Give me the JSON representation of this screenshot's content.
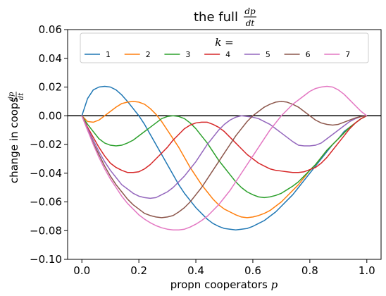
{
  "chart_data": {
    "type": "line",
    "title": {
      "prefix": "the full",
      "frac_num": "dp",
      "frac_den": "dt"
    },
    "xlabel": {
      "text": "propn cooperators",
      "var": "p"
    },
    "ylabel": {
      "text": "change in coops",
      "frac_num": "dp",
      "frac_den": "dt"
    },
    "xlim": [
      -0.05,
      1.05
    ],
    "ylim": [
      -0.1,
      0.06
    ],
    "xticks": [
      {
        "value": 0.0,
        "label": "0.0"
      },
      {
        "value": 0.2,
        "label": "0.2"
      },
      {
        "value": 0.4,
        "label": "0.4"
      },
      {
        "value": 0.6,
        "label": "0.6"
      },
      {
        "value": 0.8,
        "label": "0.8"
      },
      {
        "value": 1.0,
        "label": "1.0"
      }
    ],
    "yticks": [
      {
        "value": -0.1,
        "label": "−0.10"
      },
      {
        "value": -0.08,
        "label": "−0.08"
      },
      {
        "value": -0.06,
        "label": "−0.06"
      },
      {
        "value": -0.04,
        "label": "−0.04"
      },
      {
        "value": -0.02,
        "label": "−0.02"
      },
      {
        "value": 0.0,
        "label": "0.00"
      },
      {
        "value": 0.02,
        "label": "0.02"
      },
      {
        "value": 0.04,
        "label": "0.04"
      },
      {
        "value": 0.06,
        "label": "0.06"
      }
    ],
    "reference_line": {
      "y": 0.0,
      "color": "#000000"
    },
    "grid": false,
    "legend": {
      "title": "k =",
      "placement": "upper-center",
      "columns": 7
    },
    "series": [
      {
        "name": "1",
        "color": "#1f77b4",
        "x": [
          0.0,
          0.02,
          0.04,
          0.06,
          0.08,
          0.1,
          0.12,
          0.14,
          0.16,
          0.18,
          0.2,
          0.22,
          0.24,
          0.26,
          0.28,
          0.3,
          0.32,
          0.34,
          0.36,
          0.38,
          0.4,
          0.42,
          0.44,
          0.46,
          0.48,
          0.5,
          0.52,
          0.54,
          0.56,
          0.58,
          0.6,
          0.62,
          0.64,
          0.66,
          0.68,
          0.7,
          0.72,
          0.74,
          0.76,
          0.78,
          0.8,
          0.82,
          0.84,
          0.86,
          0.88,
          0.9,
          0.92,
          0.94,
          0.96,
          0.98,
          1.0
        ],
        "y": [
          0.0,
          0.012,
          0.018,
          0.02,
          0.0205,
          0.02,
          0.018,
          0.0145,
          0.01,
          0.005,
          0.0,
          -0.006,
          -0.013,
          -0.02,
          -0.027,
          -0.034,
          -0.041,
          -0.048,
          -0.054,
          -0.059,
          -0.064,
          -0.068,
          -0.072,
          -0.075,
          -0.077,
          -0.0785,
          -0.079,
          -0.0795,
          -0.079,
          -0.0785,
          -0.077,
          -0.075,
          -0.073,
          -0.07,
          -0.067,
          -0.063,
          -0.059,
          -0.055,
          -0.05,
          -0.045,
          -0.04,
          -0.035,
          -0.03,
          -0.025,
          -0.02,
          -0.016,
          -0.011,
          -0.008,
          -0.005,
          -0.002,
          0.0
        ]
      },
      {
        "name": "2",
        "color": "#ff7f0e",
        "x": [
          0.0,
          0.02,
          0.04,
          0.06,
          0.08,
          0.1,
          0.12,
          0.14,
          0.16,
          0.18,
          0.2,
          0.22,
          0.24,
          0.26,
          0.28,
          0.3,
          0.32,
          0.34,
          0.36,
          0.38,
          0.4,
          0.42,
          0.44,
          0.46,
          0.48,
          0.5,
          0.52,
          0.54,
          0.56,
          0.58,
          0.6,
          0.62,
          0.64,
          0.66,
          0.68,
          0.7,
          0.72,
          0.74,
          0.76,
          0.78,
          0.8,
          0.82,
          0.84,
          0.86,
          0.88,
          0.9,
          0.92,
          0.94,
          0.96,
          0.98,
          1.0
        ],
        "y": [
          0.0,
          -0.004,
          -0.0045,
          -0.003,
          0.0,
          0.003,
          0.006,
          0.0085,
          0.0095,
          0.01,
          0.0095,
          0.008,
          0.005,
          0.001,
          -0.004,
          -0.01,
          -0.016,
          -0.022,
          -0.029,
          -0.036,
          -0.042,
          -0.048,
          -0.053,
          -0.058,
          -0.062,
          -0.065,
          -0.067,
          -0.069,
          -0.0705,
          -0.071,
          -0.0705,
          -0.0695,
          -0.068,
          -0.066,
          -0.063,
          -0.06,
          -0.056,
          -0.052,
          -0.048,
          -0.043,
          -0.038,
          -0.034,
          -0.029,
          -0.024,
          -0.02,
          -0.016,
          -0.012,
          -0.008,
          -0.005,
          -0.002,
          0.0
        ]
      },
      {
        "name": "3",
        "color": "#2ca02c",
        "x": [
          0.0,
          0.02,
          0.04,
          0.06,
          0.08,
          0.1,
          0.12,
          0.14,
          0.16,
          0.18,
          0.2,
          0.22,
          0.24,
          0.26,
          0.28,
          0.3,
          0.32,
          0.34,
          0.36,
          0.38,
          0.4,
          0.42,
          0.44,
          0.46,
          0.48,
          0.5,
          0.52,
          0.54,
          0.56,
          0.58,
          0.6,
          0.62,
          0.64,
          0.66,
          0.68,
          0.7,
          0.72,
          0.74,
          0.76,
          0.78,
          0.8,
          0.82,
          0.84,
          0.86,
          0.88,
          0.9,
          0.92,
          0.94,
          0.96,
          0.98,
          1.0
        ],
        "y": [
          0.0,
          -0.006,
          -0.011,
          -0.016,
          -0.019,
          -0.0205,
          -0.021,
          -0.0205,
          -0.019,
          -0.017,
          -0.014,
          -0.011,
          -0.008,
          -0.005,
          -0.002,
          -0.0005,
          0.0,
          -0.0005,
          -0.002,
          -0.005,
          -0.009,
          -0.014,
          -0.019,
          -0.025,
          -0.031,
          -0.036,
          -0.041,
          -0.046,
          -0.05,
          -0.053,
          -0.055,
          -0.0565,
          -0.057,
          -0.0565,
          -0.0555,
          -0.054,
          -0.0515,
          -0.049,
          -0.046,
          -0.042,
          -0.038,
          -0.034,
          -0.029,
          -0.024,
          -0.02,
          -0.016,
          -0.012,
          -0.008,
          -0.005,
          -0.002,
          0.0
        ]
      },
      {
        "name": "4",
        "color": "#d62728",
        "x": [
          0.0,
          0.02,
          0.04,
          0.06,
          0.08,
          0.1,
          0.12,
          0.14,
          0.16,
          0.18,
          0.2,
          0.22,
          0.24,
          0.26,
          0.28,
          0.3,
          0.32,
          0.34,
          0.36,
          0.38,
          0.4,
          0.42,
          0.44,
          0.46,
          0.48,
          0.5,
          0.52,
          0.54,
          0.56,
          0.58,
          0.6,
          0.62,
          0.64,
          0.66,
          0.68,
          0.7,
          0.72,
          0.74,
          0.76,
          0.78,
          0.8,
          0.82,
          0.84,
          0.86,
          0.88,
          0.9,
          0.92,
          0.94,
          0.96,
          0.98,
          1.0
        ],
        "y": [
          0.0,
          -0.008,
          -0.015,
          -0.022,
          -0.028,
          -0.033,
          -0.036,
          -0.038,
          -0.0395,
          -0.0395,
          -0.039,
          -0.037,
          -0.034,
          -0.03,
          -0.026,
          -0.022,
          -0.017,
          -0.013,
          -0.009,
          -0.0065,
          -0.005,
          -0.0045,
          -0.0045,
          -0.006,
          -0.008,
          -0.011,
          -0.015,
          -0.019,
          -0.023,
          -0.027,
          -0.03,
          -0.033,
          -0.035,
          -0.037,
          -0.038,
          -0.0385,
          -0.039,
          -0.0395,
          -0.0395,
          -0.039,
          -0.0375,
          -0.036,
          -0.033,
          -0.029,
          -0.024,
          -0.019,
          -0.014,
          -0.009,
          -0.005,
          -0.002,
          0.0
        ]
      },
      {
        "name": "5",
        "color": "#9467bd",
        "x": [
          0.0,
          0.02,
          0.04,
          0.06,
          0.08,
          0.1,
          0.12,
          0.14,
          0.16,
          0.18,
          0.2,
          0.22,
          0.24,
          0.26,
          0.28,
          0.3,
          0.32,
          0.34,
          0.36,
          0.38,
          0.4,
          0.42,
          0.44,
          0.46,
          0.48,
          0.5,
          0.52,
          0.54,
          0.56,
          0.58,
          0.6,
          0.62,
          0.64,
          0.66,
          0.68,
          0.7,
          0.72,
          0.74,
          0.76,
          0.78,
          0.8,
          0.82,
          0.84,
          0.86,
          0.88,
          0.9,
          0.92,
          0.94,
          0.96,
          0.98,
          1.0
        ],
        "y": [
          0.0,
          -0.009,
          -0.017,
          -0.025,
          -0.032,
          -0.038,
          -0.043,
          -0.048,
          -0.051,
          -0.054,
          -0.056,
          -0.057,
          -0.0575,
          -0.057,
          -0.055,
          -0.053,
          -0.05,
          -0.046,
          -0.042,
          -0.037,
          -0.032,
          -0.026,
          -0.02,
          -0.015,
          -0.01,
          -0.006,
          -0.003,
          -0.001,
          0.0,
          -0.0005,
          -0.001,
          -0.002,
          -0.004,
          -0.006,
          -0.009,
          -0.012,
          -0.015,
          -0.018,
          -0.0205,
          -0.021,
          -0.021,
          -0.0205,
          -0.019,
          -0.016,
          -0.013,
          -0.01,
          -0.007,
          -0.004,
          -0.002,
          -0.0005,
          0.0
        ]
      },
      {
        "name": "6",
        "color": "#8c564b",
        "x": [
          0.0,
          0.02,
          0.04,
          0.06,
          0.08,
          0.1,
          0.12,
          0.14,
          0.16,
          0.18,
          0.2,
          0.22,
          0.24,
          0.26,
          0.28,
          0.3,
          0.32,
          0.34,
          0.36,
          0.38,
          0.4,
          0.42,
          0.44,
          0.46,
          0.48,
          0.5,
          0.52,
          0.54,
          0.56,
          0.58,
          0.6,
          0.62,
          0.64,
          0.66,
          0.68,
          0.7,
          0.72,
          0.74,
          0.76,
          0.78,
          0.8,
          0.82,
          0.84,
          0.86,
          0.88,
          0.9,
          0.92,
          0.94,
          0.96,
          0.98,
          1.0
        ],
        "y": [
          0.0,
          -0.01,
          -0.019,
          -0.027,
          -0.035,
          -0.042,
          -0.048,
          -0.053,
          -0.058,
          -0.062,
          -0.065,
          -0.068,
          -0.0695,
          -0.0705,
          -0.071,
          -0.0705,
          -0.0695,
          -0.067,
          -0.064,
          -0.06,
          -0.055,
          -0.05,
          -0.044,
          -0.038,
          -0.032,
          -0.026,
          -0.02,
          -0.014,
          -0.009,
          -0.004,
          0.0,
          0.003,
          0.006,
          0.008,
          0.0095,
          0.01,
          0.0095,
          0.008,
          0.006,
          0.003,
          0.0,
          -0.003,
          -0.005,
          -0.006,
          -0.0065,
          -0.006,
          -0.0045,
          -0.003,
          -0.0015,
          -0.0005,
          0.0
        ]
      },
      {
        "name": "7",
        "color": "#e377c2",
        "x": [
          0.0,
          0.02,
          0.04,
          0.06,
          0.08,
          0.1,
          0.12,
          0.14,
          0.16,
          0.18,
          0.2,
          0.22,
          0.24,
          0.26,
          0.28,
          0.3,
          0.32,
          0.34,
          0.36,
          0.38,
          0.4,
          0.42,
          0.44,
          0.46,
          0.48,
          0.5,
          0.52,
          0.54,
          0.56,
          0.58,
          0.6,
          0.62,
          0.64,
          0.66,
          0.68,
          0.7,
          0.72,
          0.74,
          0.76,
          0.78,
          0.8,
          0.82,
          0.84,
          0.86,
          0.88,
          0.9,
          0.92,
          0.94,
          0.96,
          0.98,
          1.0
        ],
        "y": [
          0.0,
          -0.01,
          -0.02,
          -0.029,
          -0.037,
          -0.044,
          -0.05,
          -0.056,
          -0.061,
          -0.065,
          -0.069,
          -0.072,
          -0.0745,
          -0.0765,
          -0.078,
          -0.079,
          -0.0795,
          -0.0795,
          -0.079,
          -0.0775,
          -0.0755,
          -0.073,
          -0.07,
          -0.066,
          -0.062,
          -0.057,
          -0.052,
          -0.046,
          -0.04,
          -0.034,
          -0.028,
          -0.022,
          -0.016,
          -0.01,
          -0.005,
          0.0,
          0.004,
          0.008,
          0.011,
          0.014,
          0.017,
          0.019,
          0.02,
          0.0205,
          0.02,
          0.018,
          0.015,
          0.011,
          0.007,
          0.003,
          0.0
        ]
      }
    ]
  }
}
